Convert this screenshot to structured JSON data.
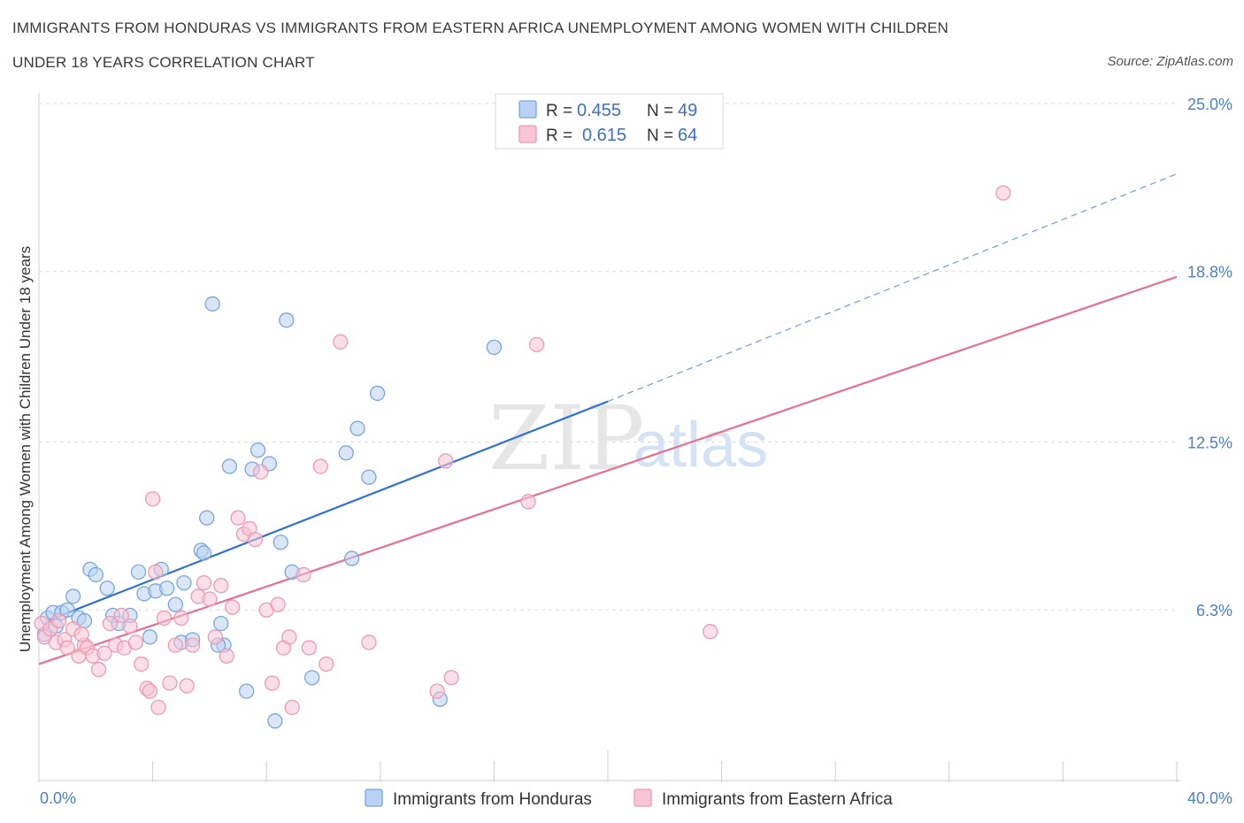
{
  "header": {
    "title_line1": "IMMIGRANTS FROM HONDURAS VS IMMIGRANTS FROM EASTERN AFRICA UNEMPLOYMENT AMONG WOMEN WITH CHILDREN",
    "title_line2": "UNDER 18 YEARS CORRELATION CHART",
    "source": "Source: ZipAtlas.com"
  },
  "watermark": {
    "zip": "ZIP",
    "atlas": "atlas"
  },
  "legend": {
    "r_label": "R =",
    "n_label": "N =",
    "rows": [
      {
        "r": "0.455",
        "n": "49"
      },
      {
        "r": "0.615",
        "n": "64"
      }
    ]
  },
  "colors": {
    "honduras_fill": "#b9d2f3",
    "honduras_stroke": "#7aa6de",
    "honduras_line": "#2f72cf",
    "eafrica_fill": "#f7c5d4",
    "eafrica_stroke": "#ee9ab4",
    "eafrica_line": "#e5708f",
    "grid": "#dcdcdc",
    "tick_label": "#4a7fcf"
  },
  "chart_data": {
    "type": "scatter",
    "title": "IMMIGRANTS FROM HONDURAS VS IMMIGRANTS FROM EASTERN AFRICA UNEMPLOYMENT AMONG WOMEN WITH CHILDREN UNDER 18 YEARS CORRELATION CHART",
    "xlabel": "",
    "ylabel": "Unemployment Among Women with Children Under 18 years",
    "xlim": [
      0,
      40
    ],
    "ylim": [
      0,
      25
    ],
    "x_tick_labels": [
      "0.0%",
      "40.0%"
    ],
    "y_ticks": [
      6.3,
      12.5,
      18.8,
      25.0
    ],
    "y_tick_labels": [
      "6.3%",
      "12.5%",
      "18.8%",
      "25.0%"
    ],
    "grid": true,
    "legend_position": "top-center",
    "series": [
      {
        "name": "Immigrants from Honduras",
        "trend": {
          "x": [
            0.3,
            20.0
          ],
          "y": [
            5.9,
            14.0
          ],
          "extended_x": [
            20.0,
            40.0
          ],
          "extended_y": [
            14.0,
            22.4
          ]
        },
        "points": [
          [
            0.2,
            5.4
          ],
          [
            0.3,
            6.0
          ],
          [
            0.5,
            6.2
          ],
          [
            0.6,
            5.7
          ],
          [
            0.8,
            6.2
          ],
          [
            1.0,
            6.3
          ],
          [
            1.2,
            6.8
          ],
          [
            1.4,
            6.0
          ],
          [
            1.6,
            5.9
          ],
          [
            1.8,
            7.8
          ],
          [
            2.0,
            7.6
          ],
          [
            2.4,
            7.1
          ],
          [
            2.6,
            6.1
          ],
          [
            2.8,
            5.8
          ],
          [
            3.2,
            6.1
          ],
          [
            3.5,
            7.7
          ],
          [
            3.7,
            6.9
          ],
          [
            3.9,
            5.3
          ],
          [
            4.1,
            7.0
          ],
          [
            4.3,
            7.8
          ],
          [
            4.5,
            7.1
          ],
          [
            4.8,
            6.5
          ],
          [
            5.0,
            5.1
          ],
          [
            5.1,
            7.3
          ],
          [
            5.4,
            5.2
          ],
          [
            5.7,
            8.5
          ],
          [
            5.8,
            8.4
          ],
          [
            5.9,
            9.7
          ],
          [
            6.1,
            17.6
          ],
          [
            6.4,
            5.8
          ],
          [
            6.5,
            5.0
          ],
          [
            6.7,
            11.6
          ],
          [
            7.3,
            3.3
          ],
          [
            7.5,
            11.5
          ],
          [
            7.7,
            12.2
          ],
          [
            8.1,
            11.7
          ],
          [
            8.5,
            8.8
          ],
          [
            8.7,
            17.0
          ],
          [
            8.9,
            7.7
          ],
          [
            9.6,
            3.8
          ],
          [
            10.8,
            12.1
          ],
          [
            11.0,
            8.2
          ],
          [
            11.2,
            13.0
          ],
          [
            11.6,
            11.2
          ],
          [
            11.9,
            14.3
          ],
          [
            14.1,
            3.0
          ],
          [
            16.0,
            16.0
          ],
          [
            6.3,
            5.0
          ],
          [
            8.3,
            2.2
          ]
        ]
      },
      {
        "name": "Immigrants from Eastern Africa",
        "trend": {
          "x": [
            0.0,
            40.0
          ],
          "y": [
            4.3,
            18.6
          ]
        },
        "points": [
          [
            0.1,
            5.8
          ],
          [
            0.2,
            5.3
          ],
          [
            0.4,
            5.6
          ],
          [
            0.6,
            5.1
          ],
          [
            0.7,
            5.9
          ],
          [
            0.9,
            5.2
          ],
          [
            1.0,
            4.9
          ],
          [
            1.2,
            5.6
          ],
          [
            1.4,
            4.6
          ],
          [
            1.6,
            5.0
          ],
          [
            1.7,
            4.9
          ],
          [
            1.9,
            4.6
          ],
          [
            2.1,
            4.1
          ],
          [
            2.3,
            4.7
          ],
          [
            2.5,
            5.8
          ],
          [
            2.7,
            5.0
          ],
          [
            2.9,
            6.1
          ],
          [
            3.0,
            4.9
          ],
          [
            3.2,
            5.7
          ],
          [
            3.4,
            5.1
          ],
          [
            3.6,
            4.3
          ],
          [
            3.8,
            3.4
          ],
          [
            4.0,
            10.4
          ],
          [
            4.1,
            7.7
          ],
          [
            4.2,
            2.7
          ],
          [
            4.4,
            6.0
          ],
          [
            4.6,
            3.6
          ],
          [
            4.8,
            5.0
          ],
          [
            5.0,
            6.0
          ],
          [
            5.2,
            3.5
          ],
          [
            5.4,
            5.0
          ],
          [
            5.6,
            6.8
          ],
          [
            5.8,
            7.3
          ],
          [
            6.0,
            6.7
          ],
          [
            6.2,
            5.3
          ],
          [
            6.4,
            7.2
          ],
          [
            6.6,
            4.6
          ],
          [
            6.8,
            6.4
          ],
          [
            7.0,
            9.7
          ],
          [
            7.2,
            9.1
          ],
          [
            7.4,
            9.3
          ],
          [
            7.6,
            8.9
          ],
          [
            7.8,
            11.4
          ],
          [
            8.0,
            6.3
          ],
          [
            8.2,
            3.6
          ],
          [
            8.4,
            6.5
          ],
          [
            8.6,
            4.9
          ],
          [
            8.8,
            5.3
          ],
          [
            8.9,
            2.7
          ],
          [
            9.3,
            7.6
          ],
          [
            9.5,
            4.9
          ],
          [
            9.9,
            11.6
          ],
          [
            10.1,
            4.3
          ],
          [
            10.6,
            16.2
          ],
          [
            11.6,
            5.1
          ],
          [
            14.0,
            3.3
          ],
          [
            14.3,
            11.8
          ],
          [
            14.5,
            3.8
          ],
          [
            17.2,
            10.3
          ],
          [
            17.5,
            16.1
          ],
          [
            23.6,
            5.5
          ],
          [
            33.9,
            21.7
          ],
          [
            3.9,
            3.3
          ],
          [
            1.5,
            5.4
          ]
        ]
      }
    ]
  },
  "bottom_legend": [
    {
      "label": "Immigrants from Honduras"
    },
    {
      "label": "Immigrants from Eastern Africa"
    }
  ]
}
